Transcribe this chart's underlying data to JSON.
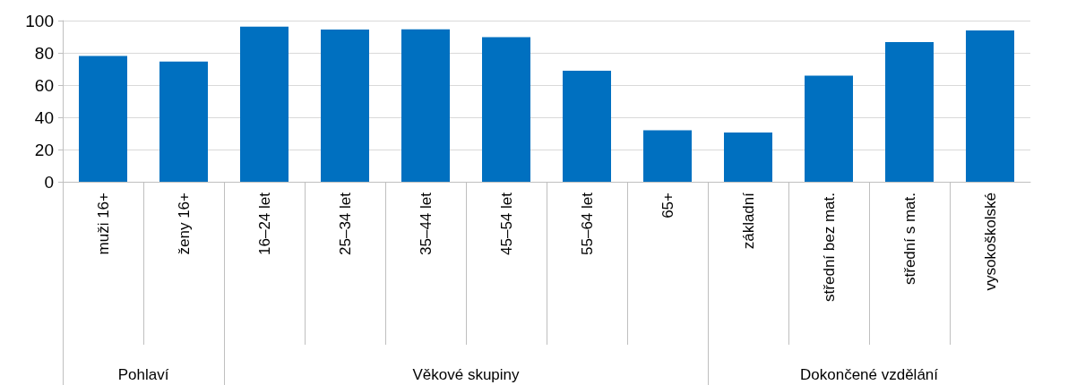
{
  "chart_data": {
    "type": "bar",
    "categories": [
      "muži 16+",
      "ženy 16+",
      "16–24 let",
      "25–34 let",
      "35–44 let",
      "45–54 let",
      "55–64 let",
      "65+",
      "základní",
      "střední bez mat.",
      "střední s mat.",
      "vysokoškolské"
    ],
    "values": [
      78.1,
      74.6,
      96.3,
      94.4,
      94.6,
      89.7,
      68.9,
      32.0,
      30.5,
      65.8,
      86.6,
      93.9
    ],
    "color": "#0070c0",
    "ylim": [
      0,
      100
    ],
    "yticks": [
      0,
      20,
      40,
      60,
      80,
      100
    ],
    "grid": "y",
    "annotations": [
      "Pohlaví",
      "Věkové skupiny",
      "Dokončené vzdělání"
    ]
  }
}
